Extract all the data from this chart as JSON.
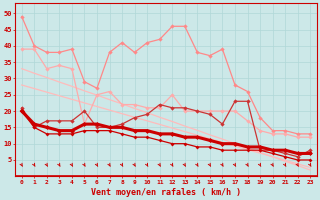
{
  "x": [
    0,
    1,
    2,
    3,
    4,
    5,
    6,
    7,
    8,
    9,
    10,
    11,
    12,
    13,
    14,
    15,
    16,
    17,
    18,
    19,
    20,
    21,
    22,
    23
  ],
  "line_pink1": [
    49,
    40,
    38,
    38,
    39,
    29,
    27,
    38,
    41,
    38,
    41,
    42,
    46,
    46,
    38,
    37,
    39,
    28,
    26,
    18,
    14,
    14,
    13,
    13
  ],
  "line_pink2": [
    39,
    39,
    33,
    34,
    33,
    16,
    25,
    26,
    22,
    22,
    21,
    21,
    25,
    20,
    20,
    20,
    20,
    20,
    17,
    14,
    13,
    13,
    12,
    12
  ],
  "line_trend1": [
    33.0,
    31.6,
    30.3,
    28.9,
    27.6,
    26.2,
    24.9,
    23.5,
    22.2,
    20.8,
    19.5,
    18.1,
    16.8,
    15.4,
    14.1,
    12.7,
    11.4,
    10.0,
    8.7,
    7.3,
    6.0,
    4.6,
    3.3,
    1.9
  ],
  "line_trend2": [
    28.0,
    26.9,
    25.8,
    24.7,
    23.6,
    22.5,
    21.4,
    20.3,
    19.2,
    18.1,
    17.0,
    15.9,
    14.8,
    13.7,
    12.6,
    11.5,
    10.4,
    9.3,
    8.2,
    7.1,
    6.0,
    4.9,
    3.8,
    2.7
  ],
  "line_med": [
    21,
    15,
    17,
    17,
    17,
    20,
    15,
    15,
    16,
    18,
    19,
    22,
    21,
    21,
    20,
    19,
    16,
    23,
    23,
    8,
    8,
    7,
    6,
    8
  ],
  "line_thick": [
    20,
    16,
    15,
    14,
    14,
    16,
    16,
    15,
    15,
    14,
    14,
    13,
    13,
    12,
    12,
    11,
    10,
    10,
    9,
    9,
    8,
    8,
    7,
    7
  ],
  "line_thin": [
    20,
    15,
    13,
    13,
    13,
    14,
    14,
    14,
    13,
    12,
    12,
    11,
    10,
    10,
    9,
    9,
    8,
    8,
    8,
    8,
    7,
    6,
    5,
    5
  ],
  "bg_color": "#cce8e8",
  "color_dark": "#cc0000",
  "color_med": "#cc3333",
  "color_light1": "#ff8888",
  "color_light2": "#ffaaaa",
  "color_trend": "#ffbbbb",
  "xlabel": "Vent moyen/en rafales ( km/h )",
  "ylim_min": 0,
  "ylim_max": 53,
  "yticks": [
    5,
    10,
    15,
    20,
    25,
    30,
    35,
    40,
    45,
    50
  ]
}
